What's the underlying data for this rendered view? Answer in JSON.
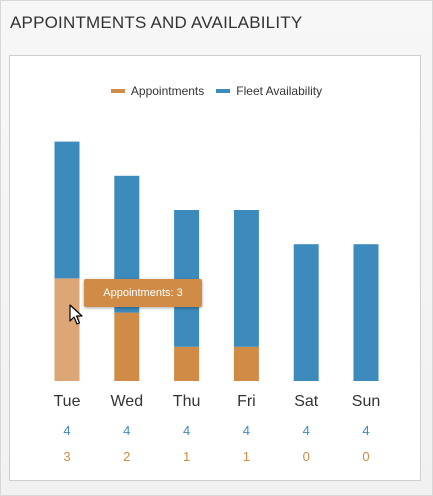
{
  "widget": {
    "title": "APPOINTMENTS AND AVAILABILITY"
  },
  "legend": {
    "appointments": {
      "label": "Appointments",
      "color": "#d08b47"
    },
    "fleet": {
      "label": "Fleet Availability",
      "color": "#3d8bbd"
    }
  },
  "tooltip": {
    "text": "Appointments: 3"
  },
  "chart_data": {
    "type": "bar",
    "stacked": true,
    "categories": [
      "Tue",
      "Wed",
      "Thu",
      "Fri",
      "Sat",
      "Sun"
    ],
    "series": [
      {
        "name": "Appointments",
        "values": [
          3,
          2,
          1,
          1,
          0,
          0
        ],
        "color": "#d08b47"
      },
      {
        "name": "Fleet Availability",
        "values": [
          4,
          4,
          4,
          4,
          4,
          4
        ],
        "color": "#3d8bbd"
      }
    ],
    "table_rows": [
      {
        "series": "Fleet Availability",
        "values": [
          "4",
          "4",
          "4",
          "4",
          "4",
          "4"
        ],
        "color": "#3d8bbd"
      },
      {
        "series": "Appointments",
        "values": [
          "3",
          "2",
          "1",
          "1",
          "0",
          "0"
        ],
        "color": "#d08b47"
      }
    ],
    "ylim": [
      0,
      7
    ],
    "grid": false,
    "legend_position": "top",
    "highlighted": {
      "category": "Tue",
      "series": "Appointments",
      "color": "#dca676"
    }
  }
}
